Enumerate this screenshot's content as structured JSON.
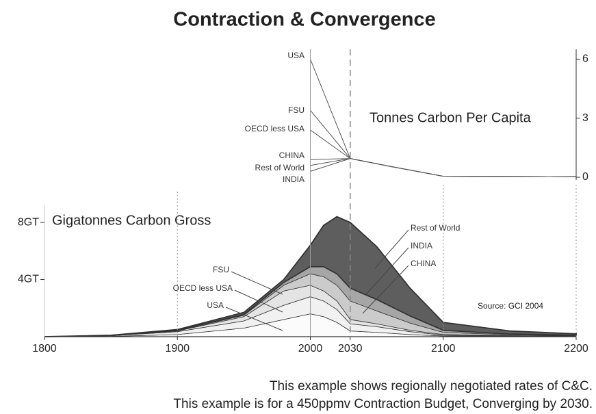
{
  "title": "Contraction & Convergence",
  "footnotes": [
    "This example shows regionally negotiated rates of C&C.",
    "This example is for a 450ppmv Contraction Budget, Converging by 2030."
  ],
  "chart_data": [
    {
      "type": "line",
      "title": "Tonnes Carbon Per Capita",
      "x": [
        2000,
        2030,
        2060,
        2100,
        2200
      ],
      "xlim": [
        1800,
        2200
      ],
      "y2lim": [
        0,
        6.5
      ],
      "y2ticks": [
        0,
        3,
        6
      ],
      "series": [
        {
          "name": "USA",
          "color": "#555555",
          "axis": "y2",
          "values": [
            6.0,
            0.95,
            0.55,
            0.05,
            0.03
          ]
        },
        {
          "name": "FSU",
          "color": "#555555",
          "axis": "y2",
          "values": [
            3.4,
            0.95,
            0.55,
            0.05,
            0.03
          ]
        },
        {
          "name": "OECD less USA",
          "color": "#555555",
          "axis": "y2",
          "values": [
            2.4,
            0.95,
            0.55,
            0.05,
            0.03
          ]
        },
        {
          "name": "CHINA",
          "color": "#555555",
          "axis": "y2",
          "values": [
            0.9,
            0.95,
            0.55,
            0.05,
            0.03
          ]
        },
        {
          "name": "Rest of World",
          "color": "#555555",
          "axis": "y2",
          "values": [
            0.6,
            0.95,
            0.55,
            0.05,
            0.03
          ]
        },
        {
          "name": "INDIA",
          "color": "#555555",
          "axis": "y2",
          "values": [
            0.3,
            0.95,
            0.55,
            0.05,
            0.03
          ]
        }
      ]
    },
    {
      "type": "area",
      "stacked": true,
      "title": "Gigatonnes Carbon Gross",
      "annotation": "Source:  GCI 2004",
      "x": [
        1800,
        1850,
        1900,
        1950,
        1980,
        2000,
        2010,
        2020,
        2030,
        2050,
        2075,
        2100,
        2150,
        2200
      ],
      "xlim": [
        1800,
        2200
      ],
      "xticks": [
        1800,
        1900,
        2000,
        2030,
        2100,
        2200
      ],
      "ylim": [
        0,
        9.2
      ],
      "yticks": [
        {
          "value": 4,
          "label": "4GT"
        },
        {
          "value": 8,
          "label": "8GT"
        }
      ],
      "series": [
        {
          "name": "USA",
          "color": "#fbfbfb",
          "values": [
            0,
            0.02,
            0.15,
            0.6,
            1.2,
            1.6,
            1.4,
            1.0,
            0.4,
            0.3,
            0.15,
            0.05,
            0.02,
            0.01
          ]
        },
        {
          "name": "OECD less USA",
          "color": "#f1f1f1",
          "values": [
            0,
            0.05,
            0.2,
            0.5,
            1.0,
            1.2,
            1.1,
            0.9,
            0.5,
            0.4,
            0.2,
            0.06,
            0.03,
            0.02
          ]
        },
        {
          "name": "FSU",
          "color": "#e4e4e4",
          "values": [
            0,
            0.01,
            0.05,
            0.3,
            1.0,
            0.8,
            0.7,
            0.6,
            0.3,
            0.2,
            0.1,
            0.04,
            0.02,
            0.01
          ]
        },
        {
          "name": "CHINA",
          "color": "#cbcbcb",
          "values": [
            0,
            0,
            0.02,
            0.1,
            0.4,
            0.8,
            1.0,
            1.1,
            1.3,
            0.9,
            0.5,
            0.15,
            0.06,
            0.03
          ]
        },
        {
          "name": "INDIA",
          "color": "#a6a6a6",
          "values": [
            0,
            0,
            0.01,
            0.05,
            0.2,
            0.5,
            0.7,
            0.8,
            0.9,
            0.8,
            0.5,
            0.15,
            0.05,
            0.03
          ]
        },
        {
          "name": "Rest of World",
          "color": "#5e5e5e",
          "values": [
            0,
            0.02,
            0.07,
            0.15,
            0.2,
            1.5,
            2.9,
            4.0,
            4.6,
            3.7,
            1.95,
            0.55,
            0.22,
            0.1
          ]
        }
      ]
    }
  ]
}
